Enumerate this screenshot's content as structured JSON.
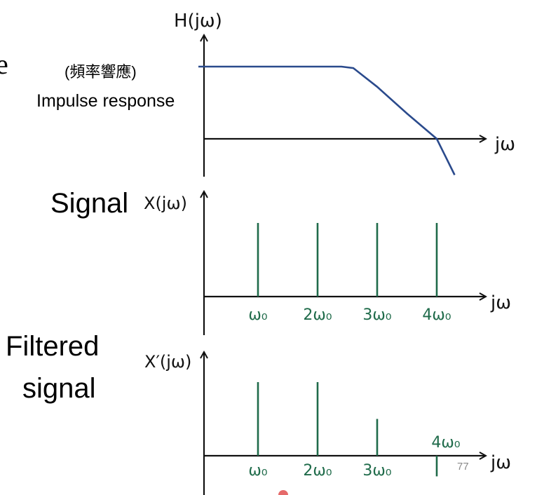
{
  "texts": {
    "stray_edge_char": "e",
    "freq_response_cn": "(頻率響應)",
    "impulse_response": "Impulse response",
    "signal": "Signal",
    "filtered_line1": "Filtered",
    "filtered_line2": "signal",
    "page_number": "77"
  },
  "axes": {
    "h_axis_label": "H(jω)",
    "x_axis_label": "X(jω)",
    "xp_axis_label": "X′(jω)",
    "jw_label": "jω"
  },
  "ticks": [
    "ω₀",
    "2ω₀",
    "3ω₀",
    "4ω₀"
  ],
  "colors": {
    "filter_curve": "#2a4a8c",
    "impulses": "#1f6b4a",
    "axes": "#111111",
    "laser_dot": "#e05050"
  },
  "chart_data": {
    "filter_response": {
      "type": "line",
      "description": "low-pass magnitude: flat until about 2.5ω₀, then falling, crossing zero near 4ω₀",
      "x": [
        0,
        1,
        2,
        2.4,
        2.6,
        3,
        3.5,
        4,
        4.3
      ],
      "y": [
        1.0,
        1.0,
        1.0,
        1.0,
        0.98,
        0.72,
        0.35,
        0.0,
        -0.5
      ]
    },
    "input_signal": {
      "type": "bar",
      "categories": [
        "ω₀",
        "2ω₀",
        "3ω₀",
        "4ω₀"
      ],
      "values": [
        1.0,
        1.0,
        1.0,
        1.0
      ]
    },
    "filtered_signal": {
      "type": "bar",
      "categories": [
        "ω₀",
        "2ω₀",
        "3ω₀",
        "4ω₀"
      ],
      "values": [
        1.0,
        1.0,
        0.5,
        -0.28
      ]
    }
  }
}
